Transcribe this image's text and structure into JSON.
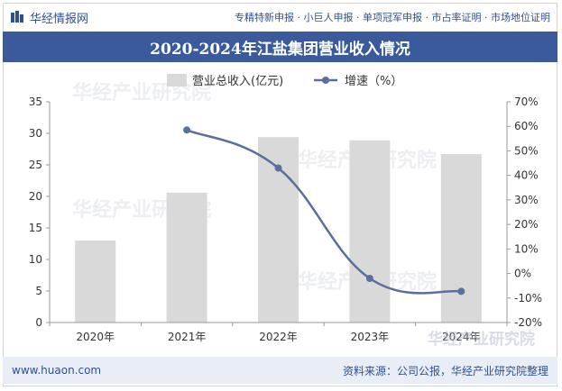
{
  "header": {
    "brand": "华经情报网",
    "tagline": "专精特新申报 · 小巨人申报 · 单项冠军申报 · 市占率证明 · 市场地位证明"
  },
  "title": "2020-2024年江盐集团营业收入情况",
  "footer": {
    "website": "www.huaon.com",
    "source": "资料来源：公司公报，华经产业研究院整理"
  },
  "watermark": "华经产业研究院",
  "colors": {
    "header_bar": "#3a5a9b",
    "bar": "#d9d9d9",
    "line": "#5b6f9e",
    "footer_bg": "#e9eef6"
  },
  "chart_data": {
    "type": "bar",
    "categories": [
      "2020年",
      "2021年",
      "2022年",
      "2023年",
      "2024年"
    ],
    "series": [
      {
        "name": "营业总收入(亿元)",
        "type": "bar",
        "axis": "left",
        "values": [
          13.0,
          20.6,
          29.4,
          28.9,
          26.7
        ]
      },
      {
        "name": "增速（%）",
        "type": "line",
        "axis": "right",
        "values": [
          null,
          58.5,
          43.0,
          -2.0,
          -7.3
        ]
      }
    ],
    "y_left": {
      "min": 0,
      "max": 35,
      "ticks": [
        "0",
        "5",
        "10",
        "15",
        "20",
        "25",
        "30",
        "35"
      ]
    },
    "y_right": {
      "min": -20,
      "max": 70,
      "ticks": [
        "-20%",
        "-10%",
        "0%",
        "10%",
        "20%",
        "30%",
        "40%",
        "50%",
        "60%",
        "70%"
      ]
    },
    "legend_position": "top-center",
    "grid": false
  }
}
